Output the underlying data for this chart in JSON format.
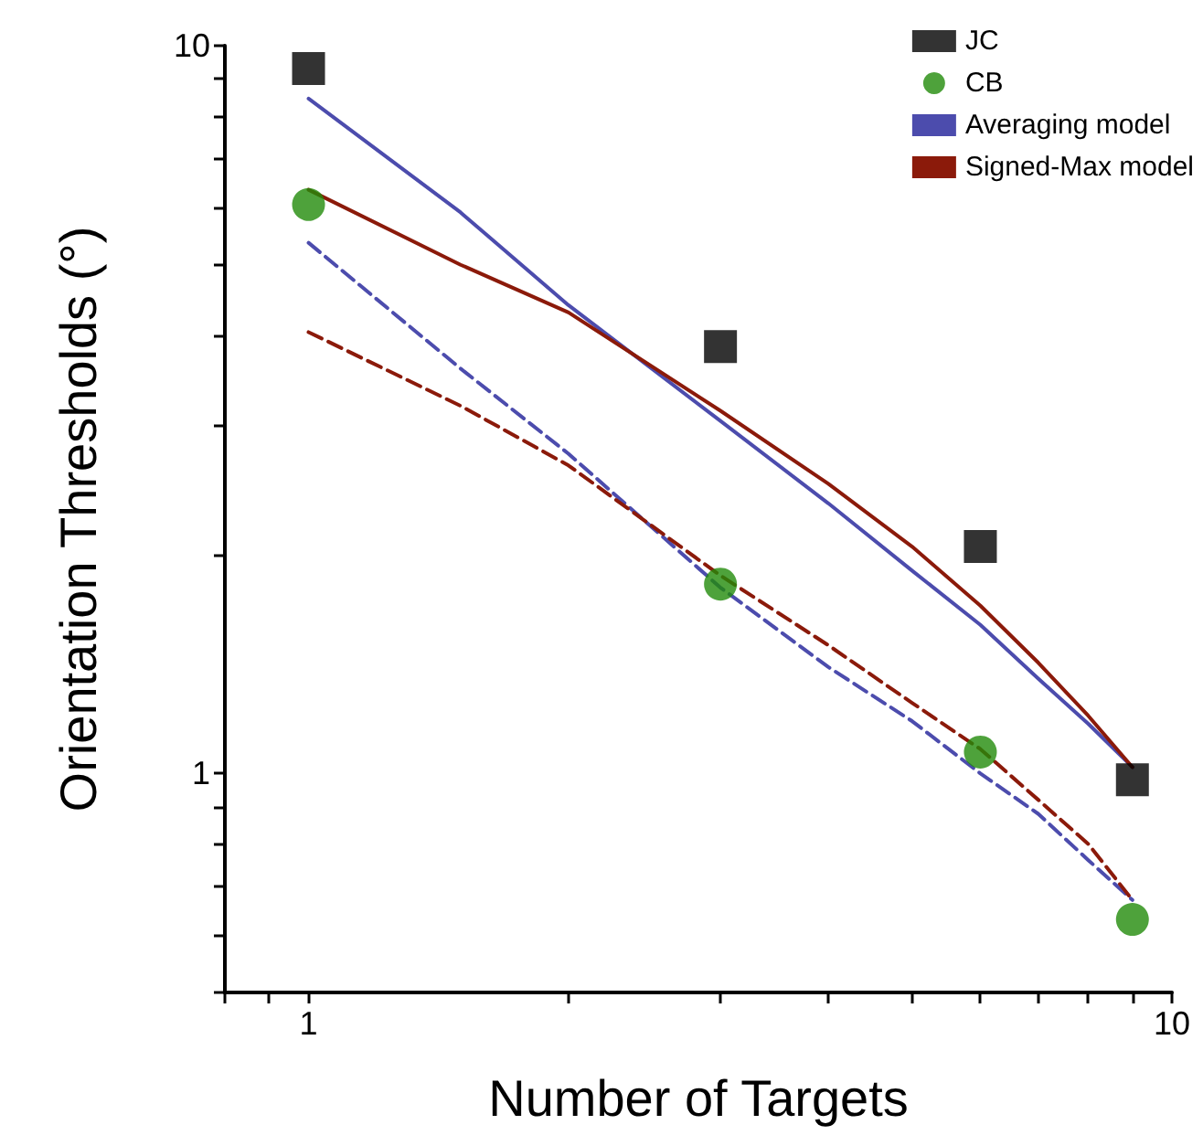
{
  "chart_data": {
    "type": "scatter",
    "xlabel": "Number of Targets",
    "ylabel": "Orientation Thresholds (°)",
    "log": "xy",
    "legend": "top right",
    "xlim": [
      0.8,
      10
    ],
    "xticks": [
      {
        "value": 0.8,
        "label": null
      },
      {
        "value": 0.9,
        "label": null
      },
      1,
      {
        "value": 2,
        "label": null
      },
      {
        "value": 3,
        "label": null
      },
      {
        "value": 4,
        "label": null
      },
      {
        "value": 5,
        "label": null
      },
      {
        "value": 6,
        "label": null
      },
      {
        "value": 7,
        "label": null
      },
      {
        "value": 8,
        "label": null
      },
      {
        "value": 9,
        "label": null
      },
      10
    ],
    "ylim": [
      0.5,
      10
    ],
    "yticks": [
      {
        "value": 0.5,
        "label": null
      },
      {
        "value": 0.6,
        "label": null
      },
      {
        "value": 0.7,
        "label": null
      },
      {
        "value": 0.8,
        "label": null
      },
      {
        "value": 0.9,
        "label": null
      },
      1,
      {
        "value": 2,
        "label": null
      },
      {
        "value": 3,
        "label": null
      },
      {
        "value": 4,
        "label": null
      },
      {
        "value": 5,
        "label": null
      },
      {
        "value": 6,
        "label": null
      },
      {
        "value": 7,
        "label": null
      },
      {
        "value": 8,
        "label": null
      },
      {
        "value": 9,
        "label": null
      },
      10
    ],
    "series": [
      {
        "name": "Averaging model",
        "type": "line",
        "color": "#4c4cad",
        "line_style": "solid",
        "marker": "none",
        "x": [
          1,
          1.5,
          2,
          3,
          4,
          5,
          6,
          7,
          8,
          9
        ],
        "values": [
          8.46,
          5.9,
          4.4,
          3.05,
          2.35,
          1.9,
          1.6,
          1.35,
          1.17,
          1.02
        ]
      },
      {
        "name": "Signed-Max model",
        "type": "line",
        "color": "#8b1a0a",
        "line_style": "solid",
        "marker": "none",
        "x": [
          1,
          1.5,
          2,
          3,
          4,
          5,
          6,
          7,
          8,
          9
        ],
        "values": [
          6.34,
          5.0,
          4.3,
          3.15,
          2.5,
          2.05,
          1.7,
          1.42,
          1.2,
          1.02
        ]
      },
      {
        "type": "line",
        "color": "#4c4cad",
        "line_style": "dashed",
        "marker": "none",
        "x": [
          1,
          1.5,
          2,
          3,
          4,
          5,
          6,
          7,
          8,
          9
        ],
        "values": [
          5.36,
          3.6,
          2.75,
          1.8,
          1.4,
          1.18,
          1.0,
          0.88,
          0.76,
          0.67
        ]
      },
      {
        "type": "line",
        "color": "#8b1a0a",
        "line_style": "dashed",
        "marker": "none",
        "x": [
          1,
          1.5,
          2,
          3,
          4,
          5,
          6,
          7,
          8,
          9
        ],
        "values": [
          4.04,
          3.2,
          2.65,
          1.87,
          1.5,
          1.25,
          1.08,
          0.92,
          0.8,
          0.67
        ]
      },
      {
        "name": "JC",
        "color": "#000000",
        "marker": "square",
        "x": [
          1,
          3,
          6,
          9
        ],
        "values": [
          9.3,
          3.86,
          2.05,
          0.98
        ]
      },
      {
        "name": "CB",
        "color": "#228b0a",
        "marker": "circle",
        "x": [
          1,
          3,
          6,
          9
        ],
        "values": [
          6.05,
          1.82,
          1.07,
          0.63
        ]
      }
    ]
  }
}
